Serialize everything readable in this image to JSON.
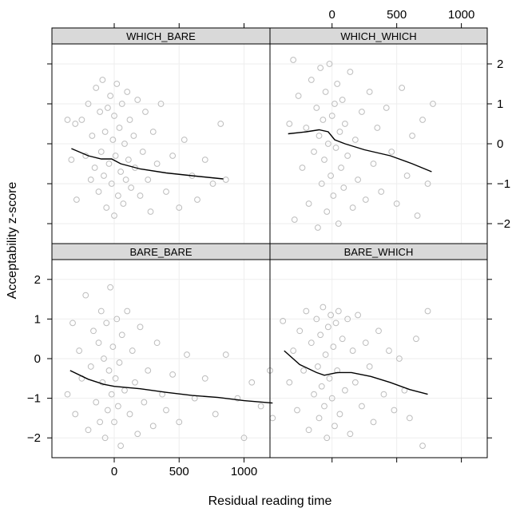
{
  "chart_data": {
    "type": "scatter",
    "xlabel": "Residual reading time",
    "ylabel": "Acceptability z-score",
    "x_ticks": [
      0,
      500,
      1000
    ],
    "y_ticks": [
      -2,
      -1,
      0,
      1,
      2
    ],
    "xlim": [
      -480,
      1200
    ],
    "ylim": [
      -2.5,
      2.5
    ],
    "colors": {
      "points": "#bdbdbd",
      "smooth": "#000000",
      "strip": "#d9d9d9",
      "grid": "#eeeeee"
    },
    "panels": [
      {
        "title": "WHICH_BARE",
        "smooth": [
          [
            -330,
            -0.12
          ],
          [
            -200,
            -0.3
          ],
          [
            -100,
            -0.38
          ],
          [
            -20,
            -0.38
          ],
          [
            50,
            -0.5
          ],
          [
            200,
            -0.63
          ],
          [
            400,
            -0.73
          ],
          [
            600,
            -0.8
          ],
          [
            840,
            -0.88
          ]
        ],
        "points": [
          [
            -360,
            0.6
          ],
          [
            -300,
            0.5
          ],
          [
            -330,
            -0.4
          ],
          [
            -290,
            -1.4
          ],
          [
            -250,
            0.6
          ],
          [
            -220,
            -0.3
          ],
          [
            -200,
            1.0
          ],
          [
            -180,
            -0.9
          ],
          [
            -170,
            0.2
          ],
          [
            -150,
            -0.6
          ],
          [
            -140,
            1.4
          ],
          [
            -120,
            -1.2
          ],
          [
            -110,
            0.8
          ],
          [
            -100,
            -0.2
          ],
          [
            -90,
            1.6
          ],
          [
            -80,
            -0.8
          ],
          [
            -70,
            0.3
          ],
          [
            -60,
            -1.6
          ],
          [
            -50,
            0.9
          ],
          [
            -40,
            -0.5
          ],
          [
            -30,
            1.2
          ],
          [
            -20,
            -1.0
          ],
          [
            -10,
            0.1
          ],
          [
            0,
            -1.8
          ],
          [
            0,
            0.7
          ],
          [
            10,
            -0.3
          ],
          [
            20,
            1.5
          ],
          [
            30,
            -1.3
          ],
          [
            40,
            0.4
          ],
          [
            50,
            -0.7
          ],
          [
            60,
            1.0
          ],
          [
            70,
            -1.5
          ],
          [
            80,
            0.0
          ],
          [
            90,
            -0.9
          ],
          [
            100,
            1.3
          ],
          [
            110,
            -0.4
          ],
          [
            120,
            0.6
          ],
          [
            130,
            -1.1
          ],
          [
            150,
            0.2
          ],
          [
            160,
            -0.6
          ],
          [
            180,
            1.1
          ],
          [
            200,
            -1.3
          ],
          [
            220,
            -0.2
          ],
          [
            240,
            0.8
          ],
          [
            260,
            -0.9
          ],
          [
            280,
            -1.7
          ],
          [
            300,
            0.3
          ],
          [
            330,
            -0.5
          ],
          [
            360,
            1.0
          ],
          [
            400,
            -1.2
          ],
          [
            450,
            -0.3
          ],
          [
            500,
            -1.6
          ],
          [
            540,
            0.1
          ],
          [
            600,
            -0.8
          ],
          [
            640,
            -1.4
          ],
          [
            700,
            -0.4
          ],
          [
            760,
            -1.0
          ],
          [
            820,
            0.5
          ],
          [
            860,
            -0.9
          ]
        ]
      },
      {
        "title": "WHICH_WHICH",
        "smooth": [
          [
            -340,
            0.25
          ],
          [
            -200,
            0.3
          ],
          [
            -100,
            0.35
          ],
          [
            -30,
            0.3
          ],
          [
            20,
            0.1
          ],
          [
            100,
            0.0
          ],
          [
            250,
            -0.15
          ],
          [
            450,
            -0.3
          ],
          [
            620,
            -0.5
          ],
          [
            770,
            -0.7
          ]
        ],
        "points": [
          [
            -330,
            0.5
          ],
          [
            -300,
            2.1
          ],
          [
            -290,
            -1.9
          ],
          [
            -260,
            1.2
          ],
          [
            -230,
            -0.6
          ],
          [
            -200,
            0.4
          ],
          [
            -180,
            -1.5
          ],
          [
            -160,
            1.6
          ],
          [
            -140,
            -0.2
          ],
          [
            -120,
            0.9
          ],
          [
            -110,
            -2.1
          ],
          [
            -100,
            0.2
          ],
          [
            -90,
            1.9
          ],
          [
            -80,
            -1.0
          ],
          [
            -70,
            0.6
          ],
          [
            -60,
            -0.4
          ],
          [
            -50,
            1.3
          ],
          [
            -40,
            -1.7
          ],
          [
            -30,
            0.0
          ],
          [
            -20,
            2.0
          ],
          [
            -10,
            -0.8
          ],
          [
            0,
            0.7
          ],
          [
            10,
            -1.3
          ],
          [
            20,
            1.0
          ],
          [
            30,
            -0.1
          ],
          [
            40,
            1.5
          ],
          [
            50,
            -2.0
          ],
          [
            60,
            0.3
          ],
          [
            70,
            -0.6
          ],
          [
            80,
            1.1
          ],
          [
            90,
            -1.1
          ],
          [
            100,
            0.5
          ],
          [
            120,
            -0.3
          ],
          [
            140,
            1.8
          ],
          [
            160,
            -1.6
          ],
          [
            180,
            0.1
          ],
          [
            200,
            -0.9
          ],
          [
            230,
            0.8
          ],
          [
            260,
            -1.4
          ],
          [
            290,
            1.3
          ],
          [
            320,
            -0.5
          ],
          [
            350,
            0.4
          ],
          [
            380,
            -1.2
          ],
          [
            420,
            0.9
          ],
          [
            460,
            -0.2
          ],
          [
            500,
            -1.5
          ],
          [
            540,
            1.4
          ],
          [
            580,
            -0.8
          ],
          [
            620,
            0.2
          ],
          [
            660,
            -1.8
          ],
          [
            700,
            0.6
          ],
          [
            740,
            -1.0
          ],
          [
            780,
            1.0
          ]
        ]
      },
      {
        "title": "BARE_BARE",
        "smooth": [
          [
            -340,
            -0.3
          ],
          [
            -200,
            -0.52
          ],
          [
            -80,
            -0.65
          ],
          [
            0,
            -0.7
          ],
          [
            200,
            -0.76
          ],
          [
            400,
            -0.85
          ],
          [
            600,
            -0.93
          ],
          [
            800,
            -0.98
          ],
          [
            1000,
            -1.06
          ],
          [
            1220,
            -1.12
          ]
        ],
        "points": [
          [
            -360,
            -0.9
          ],
          [
            -320,
            0.9
          ],
          [
            -300,
            -1.4
          ],
          [
            -270,
            0.2
          ],
          [
            -250,
            -0.5
          ],
          [
            -220,
            1.6
          ],
          [
            -200,
            -1.8
          ],
          [
            -180,
            -0.2
          ],
          [
            -160,
            0.7
          ],
          [
            -140,
            -1.1
          ],
          [
            -120,
            0.4
          ],
          [
            -110,
            -1.6
          ],
          [
            -100,
            1.2
          ],
          [
            -90,
            -0.6
          ],
          [
            -80,
            0.0
          ],
          [
            -70,
            -2.0
          ],
          [
            -60,
            0.9
          ],
          [
            -50,
            -1.3
          ],
          [
            -40,
            -0.3
          ],
          [
            -30,
            1.8
          ],
          [
            -20,
            -0.9
          ],
          [
            -10,
            0.3
          ],
          [
            0,
            -1.6
          ],
          [
            10,
            -0.5
          ],
          [
            20,
            1.0
          ],
          [
            30,
            -1.2
          ],
          [
            40,
            -0.1
          ],
          [
            50,
            -2.2
          ],
          [
            60,
            0.6
          ],
          [
            80,
            -0.8
          ],
          [
            100,
            1.2
          ],
          [
            120,
            -1.4
          ],
          [
            140,
            0.2
          ],
          [
            160,
            -0.6
          ],
          [
            180,
            -1.9
          ],
          [
            200,
            0.8
          ],
          [
            230,
            -1.1
          ],
          [
            260,
            -0.3
          ],
          [
            300,
            -1.7
          ],
          [
            330,
            0.4
          ],
          [
            370,
            -0.9
          ],
          [
            400,
            -1.3
          ],
          [
            450,
            -0.4
          ],
          [
            500,
            -1.6
          ],
          [
            560,
            0.1
          ],
          [
            620,
            -1.0
          ],
          [
            700,
            -0.5
          ],
          [
            780,
            -1.4
          ],
          [
            860,
            0.1
          ],
          [
            950,
            -1.0
          ],
          [
            1000,
            -2.0
          ],
          [
            1060,
            -0.6
          ],
          [
            1130,
            -1.2
          ],
          [
            1200,
            -0.3
          ],
          [
            1220,
            -1.5
          ]
        ]
      },
      {
        "title": "BARE_WHICH",
        "smooth": [
          [
            -370,
            0.2
          ],
          [
            -250,
            -0.15
          ],
          [
            -120,
            -0.35
          ],
          [
            -60,
            -0.42
          ],
          [
            40,
            -0.35
          ],
          [
            150,
            -0.35
          ],
          [
            300,
            -0.45
          ],
          [
            450,
            -0.6
          ],
          [
            600,
            -0.78
          ],
          [
            740,
            -0.9
          ]
        ],
        "points": [
          [
            -380,
            0.95
          ],
          [
            -330,
            -0.6
          ],
          [
            -300,
            0.2
          ],
          [
            -270,
            -1.3
          ],
          [
            -250,
            0.7
          ],
          [
            -220,
            -0.3
          ],
          [
            -200,
            1.2
          ],
          [
            -180,
            -1.8
          ],
          [
            -160,
            0.4
          ],
          [
            -140,
            -0.9
          ],
          [
            -120,
            1.0
          ],
          [
            -110,
            -0.2
          ],
          [
            -100,
            -1.5
          ],
          [
            -90,
            0.6
          ],
          [
            -80,
            -0.7
          ],
          [
            -70,
            1.3
          ],
          [
            -60,
            -1.2
          ],
          [
            -50,
            0.1
          ],
          [
            -40,
            -2.0
          ],
          [
            -30,
            0.8
          ],
          [
            -20,
            -0.5
          ],
          [
            -10,
            1.1
          ],
          [
            0,
            -1.0
          ],
          [
            10,
            0.3
          ],
          [
            20,
            -1.7
          ],
          [
            30,
            0.9
          ],
          [
            40,
            -0.3
          ],
          [
            50,
            1.2
          ],
          [
            60,
            -1.4
          ],
          [
            80,
            0.5
          ],
          [
            100,
            -0.8
          ],
          [
            120,
            1.0
          ],
          [
            140,
            -1.9
          ],
          [
            160,
            0.2
          ],
          [
            180,
            -0.6
          ],
          [
            200,
            1.1
          ],
          [
            230,
            -1.2
          ],
          [
            260,
            0.4
          ],
          [
            290,
            -0.2
          ],
          [
            320,
            -1.6
          ],
          [
            360,
            0.7
          ],
          [
            400,
            -0.9
          ],
          [
            440,
            0.2
          ],
          [
            480,
            -1.3
          ],
          [
            520,
            0.0
          ],
          [
            560,
            -0.8
          ],
          [
            600,
            -1.5
          ],
          [
            650,
            0.5
          ],
          [
            700,
            -2.2
          ],
          [
            740,
            1.2
          ]
        ]
      }
    ]
  }
}
